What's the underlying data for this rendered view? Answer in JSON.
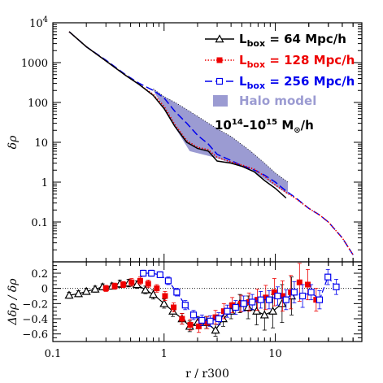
{
  "chart_data": [
    {
      "type": "line",
      "panel": "top",
      "ylabel": "δρ",
      "yscale": "log",
      "xscale": "log",
      "xlim": [
        0.1,
        60
      ],
      "ylim": [
        0.01,
        10000
      ],
      "yticks": [
        {
          "value": 10000,
          "label_base": "10",
          "label_exp": "4"
        },
        {
          "value": 1000,
          "label": "1000"
        },
        {
          "value": 100,
          "label": "100"
        },
        {
          "value": 10,
          "label": "10"
        },
        {
          "value": 1,
          "label": "1"
        },
        {
          "value": 0.1,
          "label": "0.1"
        }
      ],
      "series": [
        {
          "name": "Lbox = 64 Mpc/h",
          "name_parts": {
            "main": "L",
            "sub": "box",
            "rest": " = 64 Mpc/h"
          },
          "color": "#000000",
          "dash": "solid",
          "marker": "triangle-open",
          "x": [
            0.14,
            0.2,
            0.3,
            0.45,
            0.6,
            0.8,
            1.0,
            1.25,
            1.6,
            2.0,
            2.5,
            3.0,
            4.0,
            5.0,
            6.5,
            8.0,
            10.0,
            12.5
          ],
          "y": [
            6000,
            2500,
            1100,
            480,
            280,
            150,
            70,
            25,
            10,
            7,
            6,
            3.4,
            3.0,
            2.5,
            1.8,
            1.1,
            0.7,
            0.4
          ]
        },
        {
          "name": "Lbox = 128 Mpc/h",
          "name_parts": {
            "main": "L",
            "sub": "box",
            "rest": " = 128 Mpc/h"
          },
          "color": "#ee0000",
          "dash": "1.5,2",
          "marker": "square-filled",
          "x": [
            0.14,
            0.2,
            0.3,
            0.45,
            0.6,
            0.8,
            1.0,
            1.25,
            1.6,
            2.0,
            2.5,
            3.0,
            4.0,
            5.0,
            6.5,
            8.0,
            10.0,
            12.5,
            15,
            20,
            25,
            30,
            40,
            50
          ],
          "y": [
            6000,
            2500,
            1100,
            480,
            280,
            160,
            80,
            28,
            11,
            7.5,
            6.5,
            4.2,
            3.2,
            2.7,
            2.1,
            1.4,
            0.85,
            0.55,
            0.4,
            0.22,
            0.15,
            0.1,
            0.04,
            0.015
          ]
        },
        {
          "name": "Lbox = 256 Mpc/h",
          "name_parts": {
            "main": "L",
            "sub": "box",
            "rest": " = 256 Mpc/h"
          },
          "color": "#0000ee",
          "dash": "9,4",
          "marker": "square-open",
          "x": [
            0.14,
            0.2,
            0.3,
            0.45,
            0.6,
            0.8,
            1.0,
            1.25,
            1.6,
            2.0,
            2.5,
            3.0,
            4.0,
            5.0,
            6.5,
            8.0,
            10.0,
            12.5,
            15,
            20,
            25,
            30,
            40,
            50
          ],
          "y": [
            6000,
            2500,
            1150,
            500,
            300,
            200,
            130,
            60,
            30,
            15,
            9,
            5,
            3.5,
            2.6,
            2.0,
            1.5,
            1.0,
            0.6,
            0.42,
            0.22,
            0.15,
            0.1,
            0.04,
            0.015
          ]
        }
      ],
      "band": {
        "name": "Halo model",
        "color": "#9b9bd2",
        "x": [
          0.8,
          1.0,
          1.3,
          1.7,
          2.2,
          3.0,
          4.0,
          6.0,
          8.0,
          10.0,
          13.0
        ],
        "y_low": [
          200,
          70,
          20,
          6,
          5,
          4,
          3,
          2,
          1.2,
          0.8,
          0.5
        ],
        "y_high": [
          220,
          140,
          95,
          60,
          38,
          22,
          14,
          6,
          3,
          1.7,
          1.0
        ]
      },
      "legend": {
        "placement": "top-right",
        "extra_text": {
          "base": "10",
          "exp1": "14",
          "mid": "–10",
          "exp2": "15",
          "unit": " M",
          "unit_sub": "⊙",
          "rest": "/h"
        }
      }
    },
    {
      "type": "scatter",
      "panel": "bottom",
      "ylabel": "Δδρ / δρ",
      "ylim": [
        -0.7,
        0.35
      ],
      "yticks": [
        "0.2",
        "0",
        "−0.2",
        "−0.4",
        "−0.6"
      ],
      "ytick_values": [
        0.2,
        0,
        -0.2,
        -0.4,
        -0.6
      ],
      "xlabel": "r / r300",
      "xticks": [
        {
          "value": 0.1,
          "label": "0.1"
        },
        {
          "value": 1,
          "label": "1"
        },
        {
          "value": 10,
          "label": "10"
        }
      ],
      "reference_line": 0,
      "series": [
        {
          "name": "Lbox = 64 Mpc/h",
          "color": "#000000",
          "marker": "triangle-open",
          "x": [
            0.14,
            0.17,
            0.2,
            0.24,
            0.28,
            0.34,
            0.4,
            0.48,
            0.57,
            0.68,
            0.8,
            1.0,
            1.2,
            1.45,
            1.7,
            2.0,
            2.4,
            2.9,
            3.4,
            4.0,
            4.8,
            5.7,
            6.8,
            8.0,
            9.5,
            11.5,
            14.0
          ],
          "y": [
            -0.09,
            -0.07,
            -0.04,
            -0.01,
            0.02,
            0.03,
            0.06,
            0.07,
            0.05,
            -0.02,
            -0.08,
            -0.2,
            -0.3,
            -0.4,
            -0.5,
            -0.45,
            -0.45,
            -0.55,
            -0.4,
            -0.3,
            -0.2,
            -0.25,
            -0.3,
            -0.35,
            -0.3,
            -0.2,
            -0.1
          ],
          "err": [
            0.04,
            0.04,
            0.04,
            0.04,
            0.04,
            0.04,
            0.05,
            0.05,
            0.05,
            0.05,
            0.06,
            0.06,
            0.07,
            0.07,
            0.07,
            0.08,
            0.08,
            0.08,
            0.1,
            0.1,
            0.12,
            0.15,
            0.18,
            0.2,
            0.22,
            0.25,
            0.25
          ]
        },
        {
          "name": "Lbox = 128 Mpc/h",
          "color": "#ee0000",
          "marker": "square-filled",
          "x": [
            0.3,
            0.36,
            0.43,
            0.51,
            0.61,
            0.72,
            0.86,
            1.02,
            1.22,
            1.45,
            1.72,
            2.05,
            2.44,
            2.9,
            3.45,
            4.1,
            4.9,
            5.8,
            6.9,
            8.2,
            9.8,
            11.6,
            13.8,
            16.5,
            19.6,
            23.3
          ],
          "y": [
            0.0,
            0.03,
            0.05,
            0.08,
            0.1,
            0.06,
            0.0,
            -0.1,
            -0.25,
            -0.4,
            -0.48,
            -0.5,
            -0.45,
            -0.38,
            -0.3,
            -0.22,
            -0.2,
            -0.18,
            -0.15,
            -0.12,
            -0.05,
            -0.1,
            -0.05,
            0.08,
            0.05,
            -0.15
          ],
          "err": [
            0.04,
            0.04,
            0.04,
            0.05,
            0.05,
            0.05,
            0.05,
            0.06,
            0.06,
            0.07,
            0.07,
            0.08,
            0.08,
            0.09,
            0.1,
            0.1,
            0.11,
            0.12,
            0.14,
            0.16,
            0.18,
            0.2,
            0.22,
            0.25,
            0.2,
            0.15
          ]
        },
        {
          "name": "Lbox = 256 Mpc/h",
          "color": "#0000ee",
          "marker": "square-open",
          "x": [
            0.65,
            0.77,
            0.92,
            1.09,
            1.3,
            1.55,
            1.84,
            2.19,
            2.6,
            3.1,
            3.7,
            4.4,
            5.2,
            6.2,
            7.4,
            8.8,
            10.5,
            12.5,
            14.8,
            17.6,
            21.0,
            25.0,
            29.7,
            35.3
          ],
          "y": [
            0.2,
            0.2,
            0.18,
            0.1,
            -0.05,
            -0.22,
            -0.35,
            -0.42,
            -0.43,
            -0.4,
            -0.3,
            -0.25,
            -0.2,
            -0.18,
            -0.15,
            -0.15,
            -0.1,
            -0.15,
            -0.05,
            -0.1,
            -0.05,
            -0.15,
            0.15,
            0.02
          ],
          "err": [
            0.04,
            0.04,
            0.04,
            0.05,
            0.05,
            0.06,
            0.06,
            0.07,
            0.07,
            0.08,
            0.08,
            0.09,
            0.1,
            0.1,
            0.11,
            0.12,
            0.12,
            0.13,
            0.14,
            0.15,
            0.1,
            0.12,
            0.1,
            0.1
          ]
        }
      ]
    }
  ]
}
